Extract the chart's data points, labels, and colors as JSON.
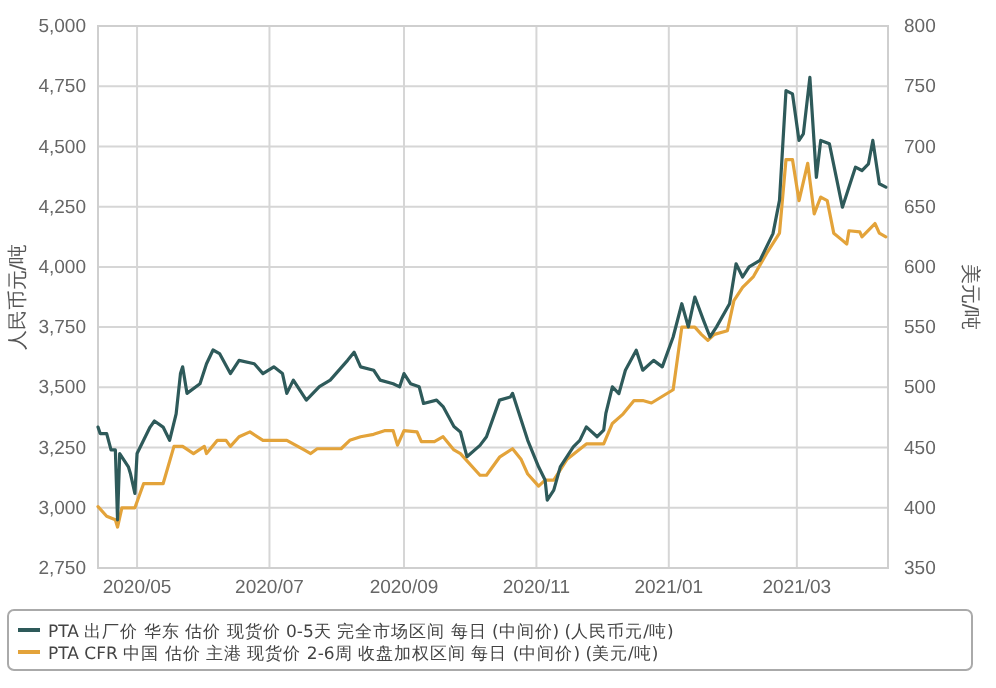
{
  "chart_data": {
    "type": "line",
    "ylabel": "人民币元/吨",
    "y2label": "美元/吨",
    "grid": true,
    "legend": "bottom",
    "line_style": "solid",
    "marker": "none",
    "xlim": [
      "2020-04-13",
      "2021-04-12"
    ],
    "xticks": [
      {
        "value": "2020-05-01",
        "label": "2020/05"
      },
      {
        "value": "2020-07-01",
        "label": "2020/07"
      },
      {
        "value": "2020-09-01",
        "label": "2020/09"
      },
      {
        "value": "2020-11-01",
        "label": "2020/11"
      },
      {
        "value": "2021-01-01",
        "label": "2021/01"
      },
      {
        "value": "2021-03-01",
        "label": "2021/03"
      }
    ],
    "ylim": [
      2750,
      5000
    ],
    "yticks": [
      {
        "value": 2750,
        "label": "2,750"
      },
      {
        "value": 3000,
        "label": "3,000"
      },
      {
        "value": 3250,
        "label": "3,250"
      },
      {
        "value": 3500,
        "label": "3,500"
      },
      {
        "value": 3750,
        "label": "3,750"
      },
      {
        "value": 4000,
        "label": "4,000"
      },
      {
        "value": 4250,
        "label": "4,250"
      },
      {
        "value": 4500,
        "label": "4,500"
      },
      {
        "value": 4750,
        "label": "4,750"
      },
      {
        "value": 5000,
        "label": "5,000"
      }
    ],
    "y2lim": [
      350,
      800
    ],
    "y2ticks": [
      350,
      400,
      450,
      500,
      550,
      600,
      650,
      700,
      750,
      800
    ],
    "series": [
      {
        "name": "PTA 出厂价 华东 估价 现货价 0-5天 完全市场区间 每日 (中间价) (人民币元/吨)",
        "color": "#2e5a5a",
        "x": [
          "2020-04-13",
          "2020-04-14",
          "2020-04-17",
          "2020-04-19",
          "2020-04-21",
          "2020-04-22",
          "2020-04-23",
          "2020-04-27",
          "2020-04-28",
          "2020-04-30",
          "2020-05-01",
          "2020-05-07",
          "2020-05-09",
          "2020-05-13",
          "2020-05-16",
          "2020-05-19",
          "2020-05-21",
          "2020-05-22",
          "2020-05-24",
          "2020-05-30",
          "2020-06-02",
          "2020-06-05",
          "2020-06-08",
          "2020-06-13",
          "2020-06-17",
          "2020-06-24",
          "2020-06-28",
          "2020-07-03",
          "2020-07-07",
          "2020-07-09",
          "2020-07-12",
          "2020-07-18",
          "2020-07-24",
          "2020-07-29",
          "2020-08-06",
          "2020-08-09",
          "2020-08-12",
          "2020-08-18",
          "2020-08-21",
          "2020-08-27",
          "2020-08-30",
          "2020-09-01",
          "2020-09-04",
          "2020-09-08",
          "2020-09-10",
          "2020-09-16",
          "2020-09-19",
          "2020-09-24",
          "2020-09-27",
          "2020-09-30",
          "2020-10-06",
          "2020-10-09",
          "2020-10-15",
          "2020-10-20",
          "2020-10-21",
          "2020-10-28",
          "2020-11-02",
          "2020-11-05",
          "2020-11-06",
          "2020-11-09",
          "2020-11-12",
          "2020-11-18",
          "2020-11-21",
          "2020-11-24",
          "2020-11-29",
          "2020-12-02",
          "2020-12-03",
          "2020-12-06",
          "2020-12-09",
          "2020-12-12",
          "2020-12-17",
          "2020-12-20",
          "2020-12-25",
          "2020-12-29",
          "2021-01-03",
          "2021-01-07",
          "2021-01-10",
          "2021-01-13",
          "2021-01-17",
          "2021-01-20",
          "2021-01-23",
          "2021-01-29",
          "2021-02-01",
          "2021-02-04",
          "2021-02-07",
          "2021-02-12",
          "2021-02-18",
          "2021-02-21",
          "2021-02-24",
          "2021-02-27",
          "2021-03-02",
          "2021-03-04",
          "2021-03-07",
          "2021-03-10",
          "2021-03-12",
          "2021-03-16",
          "2021-03-22",
          "2021-03-25",
          "2021-03-28",
          "2021-03-31",
          "2021-04-03",
          "2021-04-05",
          "2021-04-08",
          "2021-04-11"
        ],
        "values": [
          3335,
          3308,
          3308,
          3240,
          3240,
          2950,
          3225,
          3170,
          3140,
          3060,
          3225,
          3335,
          3360,
          3335,
          3280,
          3390,
          3557,
          3585,
          3475,
          3515,
          3598,
          3655,
          3640,
          3557,
          3612,
          3598,
          3557,
          3585,
          3557,
          3475,
          3530,
          3447,
          3503,
          3530,
          3612,
          3646,
          3585,
          3571,
          3530,
          3515,
          3502,
          3557,
          3515,
          3502,
          3433,
          3447,
          3420,
          3337,
          3315,
          3212,
          3259,
          3295,
          3447,
          3460,
          3475,
          3280,
          3170,
          3115,
          3032,
          3073,
          3170,
          3253,
          3280,
          3336,
          3295,
          3322,
          3392,
          3502,
          3474,
          3571,
          3654,
          3571,
          3612,
          3585,
          3709,
          3847,
          3751,
          3875,
          3778,
          3709,
          3751,
          3847,
          4013,
          3958,
          4000,
          4027,
          4138,
          4276,
          4732,
          4718,
          4525,
          4552,
          4787,
          4372,
          4525,
          4511,
          4248,
          4331,
          4414,
          4400,
          4428,
          4525,
          4345,
          4331
        ]
      },
      {
        "name": "PTA CFR 中国 估价 主港 现货价 2-6周 收盘加权区间 每日 (中间价) (美元/吨)",
        "color": "#e3a33a",
        "axis": "y2",
        "x": [
          "2020-04-13",
          "2020-04-17",
          "2020-04-21",
          "2020-04-22",
          "2020-04-24",
          "2020-04-30",
          "2020-05-04",
          "2020-05-13",
          "2020-05-18",
          "2020-05-22",
          "2020-05-27",
          "2020-06-01",
          "2020-06-02",
          "2020-06-07",
          "2020-06-11",
          "2020-06-13",
          "2020-06-17",
          "2020-06-22",
          "2020-06-28",
          "2020-07-09",
          "2020-07-17",
          "2020-07-20",
          "2020-07-23",
          "2020-08-03",
          "2020-08-07",
          "2020-08-12",
          "2020-08-18",
          "2020-08-23",
          "2020-08-27",
          "2020-08-29",
          "2020-09-01",
          "2020-09-07",
          "2020-09-09",
          "2020-09-15",
          "2020-09-19",
          "2020-09-24",
          "2020-09-27",
          "2020-10-06",
          "2020-10-09",
          "2020-10-15",
          "2020-10-21",
          "2020-10-25",
          "2020-10-28",
          "2020-11-02",
          "2020-11-05",
          "2020-11-09",
          "2020-11-15",
          "2020-11-24",
          "2020-12-02",
          "2020-12-06",
          "2020-12-11",
          "2020-12-16",
          "2020-12-20",
          "2020-12-24",
          "2021-01-03",
          "2021-01-07",
          "2021-01-13",
          "2021-01-16",
          "2021-01-19",
          "2021-01-22",
          "2021-01-28",
          "2021-01-31",
          "2021-02-04",
          "2021-02-09",
          "2021-02-15",
          "2021-02-21",
          "2021-02-24",
          "2021-02-27",
          "2021-03-02",
          "2021-03-06",
          "2021-03-09",
          "2021-03-12",
          "2021-03-15",
          "2021-03-18",
          "2021-03-22",
          "2021-03-24",
          "2021-03-25",
          "2021-03-30",
          "2021-03-31",
          "2021-04-06",
          "2021-04-08",
          "2021-04-11"
        ],
        "values": [
          401,
          393,
          390,
          384,
          400,
          400,
          420,
          420,
          451,
          451,
          445,
          451,
          445,
          456,
          456,
          451,
          459,
          463,
          456,
          456,
          448,
          445,
          449,
          449,
          456,
          459,
          461,
          464,
          464,
          452,
          464,
          463,
          455,
          455,
          459,
          448,
          445,
          427,
          427,
          442,
          449,
          440,
          428,
          418,
          423,
          423,
          440,
          453,
          453,
          470,
          478,
          489,
          489,
          487,
          498,
          550,
          550,
          544,
          539,
          544,
          547,
          572,
          583,
          592,
          611,
          628,
          689,
          689,
          655,
          686,
          644,
          658,
          655,
          628,
          622,
          619,
          630,
          629,
          625,
          636,
          628,
          625
        ]
      }
    ]
  }
}
